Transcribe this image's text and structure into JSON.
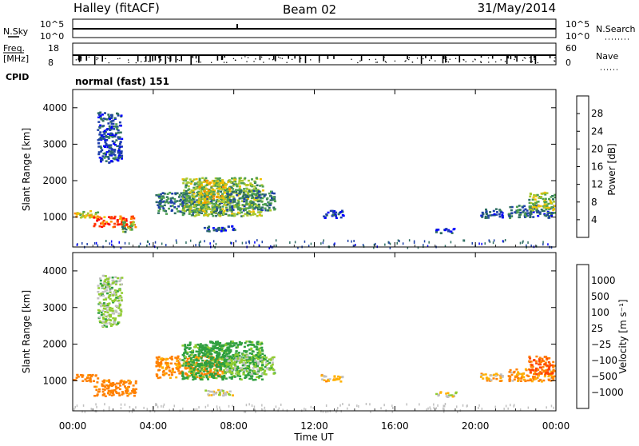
{
  "header": {
    "station": "Halley (fitACF)",
    "beam": "Beam 02",
    "date": "31/May/2014"
  },
  "strips": {
    "nsky_label": "N.Sky",
    "nsky_ticks": [
      "10^5",
      "10^0"
    ],
    "nsearch_label": "N.Search",
    "freq_label": "Freq.",
    "freq_unit": "[MHz]",
    "freq_ticks": [
      "18",
      "8"
    ],
    "nave_label": "Nave",
    "nave_ticks": [
      "60",
      "0"
    ],
    "cpid_label": "CPID",
    "cpid_value": "normal (fast) 151"
  },
  "colors": {
    "power": [
      "#0000ff",
      "#1e40a8",
      "#2e6e62",
      "#4ea050",
      "#a8c830",
      "#f0c000",
      "#ff8c00",
      "#ff4000",
      "#ff0000"
    ],
    "velocity": [
      "#ff0000",
      "#ff4000",
      "#ff8000",
      "#ffb000",
      "#c0c0c0",
      "#90cc30",
      "#30a040",
      "#2050c0",
      "#0000d0"
    ],
    "ground_scatter": "#c0c0c0"
  },
  "chart_data": [
    {
      "type": "heatmap",
      "parameter": "power",
      "ylabel": "Slant Range [km]",
      "xlabel": "Time UT",
      "x_ticks": [
        "00:00",
        "04:00",
        "08:00",
        "12:00",
        "16:00",
        "20:00",
        "00:00"
      ],
      "x_range_hours": [
        0,
        24
      ],
      "y_ticks": [
        1000,
        2000,
        3000,
        4000
      ],
      "ylim": [
        180,
        4500
      ],
      "colorbar": {
        "label": "Power [dB]",
        "range": [
          0,
          32
        ],
        "ticks": [
          4,
          8,
          12,
          16,
          20,
          24,
          28
        ]
      },
      "regions": [
        {
          "t": [
            0.0,
            1.2
          ],
          "r": [
            1000,
            1200
          ],
          "v": 18
        },
        {
          "t": [
            1.0,
            3.1
          ],
          "r": [
            750,
            1050
          ],
          "v": 26
        },
        {
          "t": [
            2.4,
            3.0
          ],
          "r": [
            600,
            900
          ],
          "v": 12
        },
        {
          "t": [
            4.1,
            7.4
          ],
          "r": [
            1100,
            1700
          ],
          "v": 9
        },
        {
          "t": [
            5.4,
            9.4
          ],
          "r": [
            1050,
            2100
          ],
          "v": 14
        },
        {
          "t": [
            6.2,
            7.8
          ],
          "r": [
            1400,
            2050
          ],
          "v": 18
        },
        {
          "t": [
            7.6,
            10.0
          ],
          "r": [
            1200,
            1750
          ],
          "v": 10
        },
        {
          "t": [
            6.5,
            8.0
          ],
          "r": [
            620,
            780
          ],
          "v": 6
        },
        {
          "t": [
            12.3,
            13.4
          ],
          "r": [
            1000,
            1200
          ],
          "v": 5
        },
        {
          "t": [
            18.0,
            19.0
          ],
          "r": [
            580,
            720
          ],
          "v": 5
        },
        {
          "t": [
            20.2,
            21.3
          ],
          "r": [
            1000,
            1250
          ],
          "v": 6
        },
        {
          "t": [
            21.6,
            23.9
          ],
          "r": [
            1000,
            1350
          ],
          "v": 8
        },
        {
          "t": [
            22.6,
            23.9
          ],
          "r": [
            1200,
            1700
          ],
          "v": 15
        },
        {
          "t": [
            1.2,
            2.4
          ],
          "r": [
            2500,
            3900
          ],
          "v": 6
        }
      ]
    },
    {
      "type": "heatmap",
      "parameter": "velocity",
      "ylabel": "Slant Range [km]",
      "xlabel": "Time UT",
      "x_ticks": [
        "00:00",
        "04:00",
        "08:00",
        "12:00",
        "16:00",
        "20:00",
        "00:00"
      ],
      "x_range_hours": [
        0,
        24
      ],
      "y_ticks": [
        1000,
        2000,
        3000,
        4000
      ],
      "ylim": [
        180,
        4500
      ],
      "colorbar": {
        "label": "Velocity [m s⁻¹]",
        "ticks": [
          "1000",
          "500",
          "100",
          "25",
          "−25",
          "−100",
          "−500",
          "−1000"
        ]
      },
      "regions": [
        {
          "t": [
            0.0,
            1.2
          ],
          "r": [
            1000,
            1200
          ],
          "v": -300
        },
        {
          "t": [
            1.0,
            3.1
          ],
          "r": [
            600,
            1050
          ],
          "v": -250
        },
        {
          "t": [
            4.1,
            7.4
          ],
          "r": [
            1100,
            1700
          ],
          "v": -150
        },
        {
          "t": [
            5.4,
            9.4
          ],
          "r": [
            1050,
            2100
          ],
          "v": 200
        },
        {
          "t": [
            6.2,
            7.8
          ],
          "r": [
            1400,
            2050
          ],
          "v": 250
        },
        {
          "t": [
            7.6,
            10.0
          ],
          "r": [
            1200,
            1750
          ],
          "v": 60
        },
        {
          "t": [
            6.5,
            8.0
          ],
          "r": [
            620,
            780
          ],
          "v": 0
        },
        {
          "t": [
            12.3,
            13.4
          ],
          "r": [
            1000,
            1200
          ],
          "v": -50
        },
        {
          "t": [
            18.0,
            19.0
          ],
          "r": [
            580,
            720
          ],
          "v": 0
        },
        {
          "t": [
            20.2,
            21.3
          ],
          "r": [
            1000,
            1250
          ],
          "v": -60
        },
        {
          "t": [
            21.6,
            23.9
          ],
          "r": [
            1000,
            1350
          ],
          "v": -120
        },
        {
          "t": [
            22.6,
            23.9
          ],
          "r": [
            1200,
            1700
          ],
          "v": -500
        },
        {
          "t": [
            1.2,
            2.4
          ],
          "r": [
            2500,
            3900
          ],
          "v": 50
        }
      ]
    }
  ]
}
